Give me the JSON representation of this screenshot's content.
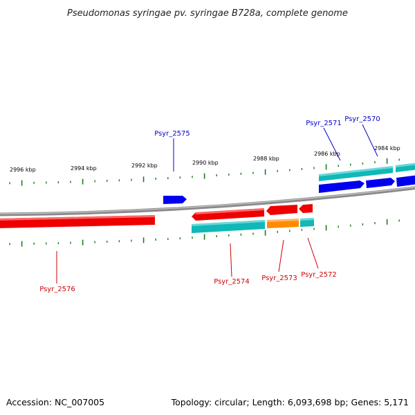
{
  "title": "Pseudomonas syringae pv. syringae B728a, complete genome",
  "footer": {
    "accession": "Accession: NC_007005",
    "summary": "Topology: circular; Length: 6,093,698 bp; Genes: 5,171"
  },
  "colors": {
    "backbone": "#8a8a8a",
    "tick": "#1a7a1a",
    "forward_label": "#0000cc",
    "reverse_label": "#cc0000",
    "gene_red": "#ee0000",
    "gene_blue": "#0000ee",
    "gene_cyan": "#10b8b8",
    "gene_orange": "#ff8c00"
  },
  "tick_labels": [
    "2996 kbp",
    "2994 kbp",
    "2992 kbp",
    "2990 kbp",
    "2988 kbp",
    "2986 kbp",
    "2984 kbp"
  ],
  "genes": [
    {
      "id": "Psyr_2570",
      "strand": "forward",
      "color": "gene_blue"
    },
    {
      "id": "Psyr_2571",
      "strand": "forward",
      "color": "gene_cyan"
    },
    {
      "id": "Psyr_2572",
      "strand": "reverse",
      "color": "gene_red"
    },
    {
      "id": "Psyr_2573",
      "strand": "reverse",
      "color": "gene_orange"
    },
    {
      "id": "Psyr_2574",
      "strand": "reverse",
      "color": "gene_red"
    },
    {
      "id": "Psyr_2575",
      "strand": "forward",
      "color": "gene_blue"
    },
    {
      "id": "Psyr_2576",
      "strand": "reverse",
      "color": "gene_red"
    }
  ]
}
